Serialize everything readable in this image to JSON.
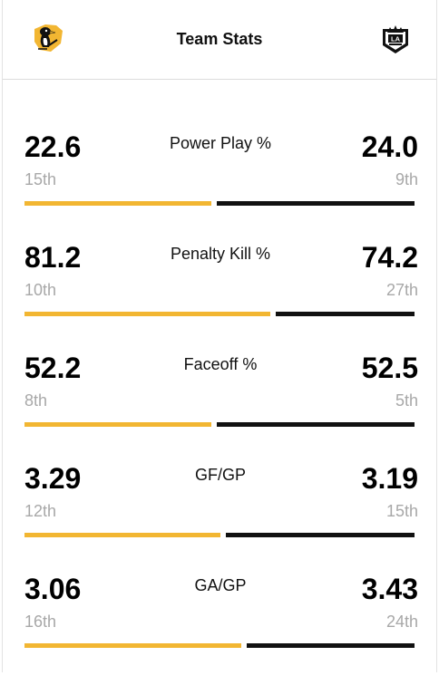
{
  "header": {
    "title": "Team Stats",
    "home_logo": "penguins-logo-icon",
    "away_logo": "kings-logo-icon"
  },
  "colors": {
    "home_bar": "#f2b632",
    "away_bar": "#111111",
    "rank_text": "#a8a8a8"
  },
  "stats": [
    {
      "label": "Power Play %",
      "home_value": "22.6",
      "home_rank": "15th",
      "away_value": "24.0",
      "away_rank": "9th",
      "home_share": 0.485
    },
    {
      "label": "Penalty Kill %",
      "home_value": "81.2",
      "home_rank": "10th",
      "away_value": "74.2",
      "away_rank": "27th",
      "home_share": 0.64
    },
    {
      "label": "Faceoff %",
      "home_value": "52.2",
      "home_rank": "8th",
      "away_value": "52.5",
      "away_rank": "5th",
      "home_share": 0.486
    },
    {
      "label": "GF/GP",
      "home_value": "3.29",
      "home_rank": "12th",
      "away_value": "3.19",
      "away_rank": "15th",
      "home_share": 0.51
    },
    {
      "label": "GA/GP",
      "home_value": "3.06",
      "home_rank": "16th",
      "away_value": "3.43",
      "away_rank": "24th",
      "home_share": 0.563
    }
  ]
}
